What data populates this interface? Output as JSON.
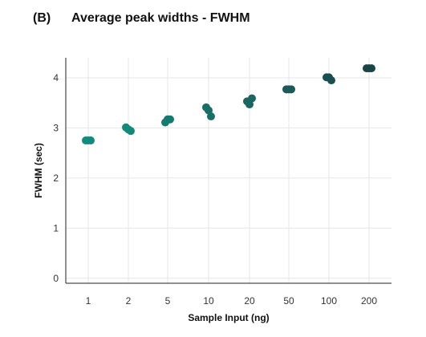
{
  "panel_label": "(B)",
  "chart_data": {
    "type": "scatter",
    "title": "Average peak widths - FWHM",
    "xlabel": "Sample Input (ng)",
    "ylabel": "FWHM (sec)",
    "categories": [
      "1",
      "2",
      "5",
      "10",
      "20",
      "50",
      "100",
      "200"
    ],
    "ylim": [
      -0.1,
      4.4
    ],
    "yticks": [
      0,
      1,
      2,
      3,
      4
    ],
    "grid": true,
    "points": [
      {
        "x": "1",
        "y": 2.75,
        "color": "#138a7c"
      },
      {
        "x": "1",
        "y": 2.75,
        "color": "#138a7c"
      },
      {
        "x": "1",
        "y": 2.75,
        "color": "#138a7c"
      },
      {
        "x": "2",
        "y": 3.01,
        "color": "#14897a"
      },
      {
        "x": "2",
        "y": 2.97,
        "color": "#14897a"
      },
      {
        "x": "2",
        "y": 2.94,
        "color": "#14897a"
      },
      {
        "x": "5",
        "y": 3.11,
        "color": "#177a70"
      },
      {
        "x": "5",
        "y": 3.17,
        "color": "#177a70"
      },
      {
        "x": "5",
        "y": 3.17,
        "color": "#177a70"
      },
      {
        "x": "10",
        "y": 3.41,
        "color": "#1a6e66"
      },
      {
        "x": "10",
        "y": 3.35,
        "color": "#1a6e66"
      },
      {
        "x": "10",
        "y": 3.23,
        "color": "#1a6e66"
      },
      {
        "x": "20",
        "y": 3.53,
        "color": "#1c6560"
      },
      {
        "x": "20",
        "y": 3.47,
        "color": "#1c6560"
      },
      {
        "x": "20",
        "y": 3.59,
        "color": "#1c6560"
      },
      {
        "x": "50",
        "y": 3.77,
        "color": "#1c5a58"
      },
      {
        "x": "50",
        "y": 3.77,
        "color": "#1c5a58"
      },
      {
        "x": "50",
        "y": 3.77,
        "color": "#1c5a58"
      },
      {
        "x": "100",
        "y": 4.01,
        "color": "#1b4f4f"
      },
      {
        "x": "100",
        "y": 4.01,
        "color": "#1b4f4f"
      },
      {
        "x": "100",
        "y": 3.95,
        "color": "#1b4f4f"
      },
      {
        "x": "200",
        "y": 4.19,
        "color": "#1a4445"
      },
      {
        "x": "200",
        "y": 4.19,
        "color": "#1a4445"
      },
      {
        "x": "200",
        "y": 4.19,
        "color": "#1a4445"
      }
    ]
  }
}
